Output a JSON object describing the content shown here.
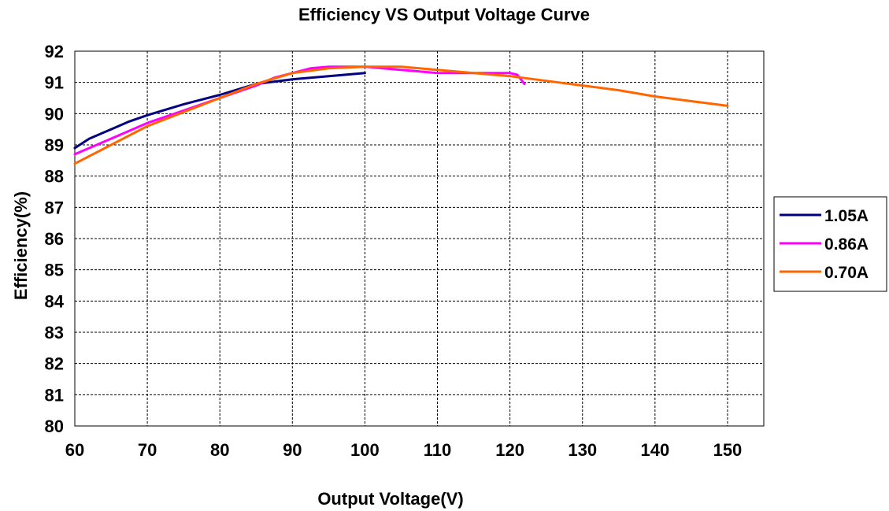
{
  "chart_data": {
    "type": "line",
    "title": "Efficiency VS Output Voltage Curve",
    "xlabel": "Output Voltage(V)",
    "ylabel": "Efficiency(%)",
    "xlim": [
      60,
      155
    ],
    "ylim": [
      80,
      92
    ],
    "xticks": [
      60,
      70,
      80,
      90,
      100,
      110,
      120,
      130,
      140,
      150
    ],
    "yticks": [
      80,
      81,
      82,
      83,
      84,
      85,
      86,
      87,
      88,
      89,
      90,
      91,
      92
    ],
    "grid": true,
    "legend_position": "right",
    "series": [
      {
        "name": "1.05A",
        "color": "#000080",
        "x": [
          60,
          62,
          65,
          67.5,
          70,
          75,
          80,
          85,
          90,
          95,
          100
        ],
        "y": [
          88.9,
          89.2,
          89.5,
          89.75,
          89.95,
          90.3,
          90.6,
          90.95,
          91.1,
          91.2,
          91.3
        ]
      },
      {
        "name": "0.86A",
        "color": "#ff00ff",
        "x": [
          60,
          65,
          70,
          75,
          80,
          85,
          87.5,
          90,
          92.5,
          95,
          100,
          105,
          110,
          115,
          120,
          121,
          121.5,
          122
        ],
        "y": [
          88.7,
          89.2,
          89.7,
          90.1,
          90.5,
          90.9,
          91.15,
          91.3,
          91.45,
          91.5,
          91.5,
          91.4,
          91.3,
          91.3,
          91.3,
          91.25,
          91.1,
          90.95
        ]
      },
      {
        "name": "0.70A",
        "color": "#ff6600",
        "x": [
          60,
          65,
          70,
          75,
          80,
          85,
          90,
          95,
          100,
          105,
          110,
          115,
          120,
          125,
          130,
          135,
          140,
          145,
          150
        ],
        "y": [
          88.4,
          89.0,
          89.6,
          90.05,
          90.5,
          90.95,
          91.3,
          91.45,
          91.5,
          91.5,
          91.4,
          91.3,
          91.2,
          91.05,
          90.9,
          90.75,
          90.55,
          90.4,
          90.25
        ]
      }
    ]
  }
}
